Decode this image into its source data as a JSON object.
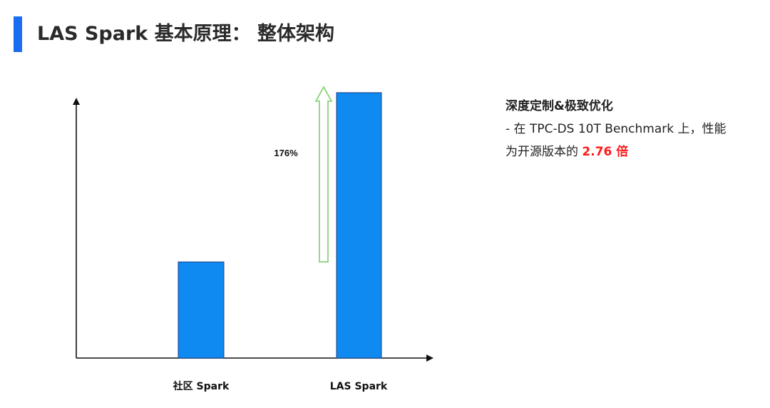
{
  "page": {
    "title": "LAS Spark 基本原理： 整体架构",
    "accent_color": "#1a6cf0"
  },
  "description": {
    "heading": "深度定制&极致优化",
    "line1": "- 在 TPC-DS 10T Benchmark 上，性能",
    "line2_prefix": "为开源版本的 ",
    "highlight": "2.76 倍",
    "highlight_color": "#ff1a1a"
  },
  "chart_data": {
    "type": "bar",
    "categories": [
      "社区 Spark",
      "LAS Spark"
    ],
    "values": [
      1,
      2.76
    ],
    "ylim": [
      0,
      2.9
    ],
    "grid": false,
    "bar_color": "#0e8af0",
    "annotation": {
      "text": "176%",
      "arrow_color": "#7ccf6a",
      "from_value": 1,
      "to_value": 2.76
    }
  }
}
